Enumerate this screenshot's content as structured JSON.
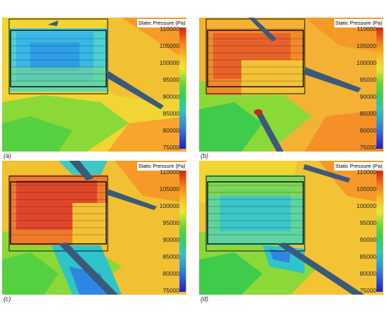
{
  "colorbar": {
    "title": "Static Pressure (Pa)",
    "ticks": [
      "110000",
      "105000",
      "100000",
      "95000",
      "90000",
      "85000",
      "80000",
      "75000"
    ]
  },
  "panels": [
    {
      "caption": "(a)",
      "region": "cool"
    },
    {
      "caption": "(b)",
      "region": "warm"
    },
    {
      "caption": "(c)",
      "region": "warm"
    },
    {
      "caption": "(d)",
      "region": "cool"
    }
  ]
}
